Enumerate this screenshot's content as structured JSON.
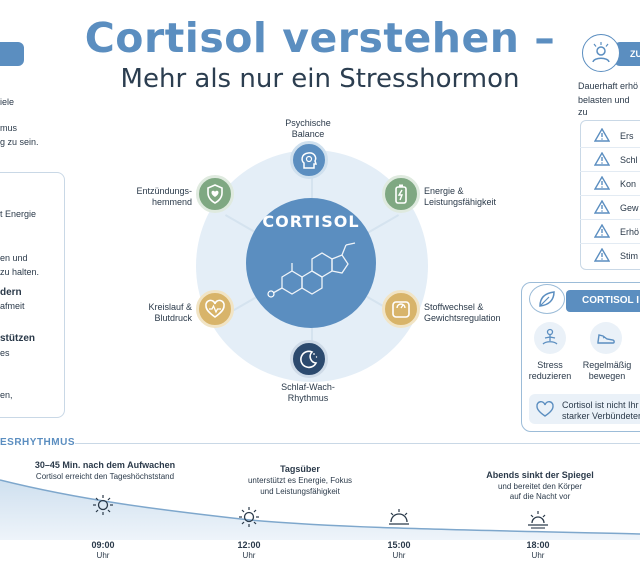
{
  "header": {
    "title": "Cortisol verstehen –",
    "subtitle": "Mehr als nur ein Stresshormon"
  },
  "left_panel": {
    "intro_lines": [
      "iele",
      "mus",
      "g zu sein."
    ],
    "items": [
      {
        "bold": "",
        "text": "t Energie"
      },
      {
        "bold": "",
        "text": "en und"
      },
      {
        "bold": "",
        "text": "zu halten."
      },
      {
        "bold": "dern",
        "text": "afmeit"
      },
      {
        "bold": "stützen",
        "text": "es"
      },
      {
        "bold": "",
        "text": "en,"
      }
    ]
  },
  "center": {
    "core_label": "CORTISOL",
    "nodes": [
      {
        "id": "psyche",
        "label_lines": [
          "Psychische",
          "Balance"
        ],
        "icon": "head-icon"
      },
      {
        "id": "energie",
        "label_lines": [
          "Energie &",
          "Leistungsfähigkeit"
        ],
        "icon": "battery-icon"
      },
      {
        "id": "stoffwechsel",
        "label_lines": [
          "Stoffwechsel &",
          "Gewichtsregulation"
        ],
        "icon": "scale-icon"
      },
      {
        "id": "schlaf",
        "label_lines": [
          "Schlaf-Wach-",
          "Rhythmus"
        ],
        "icon": "moon-icon"
      },
      {
        "id": "kreislauf",
        "label_lines": [
          "Kreislauf &",
          "Blutdruck"
        ],
        "icon": "heart-pulse-icon"
      },
      {
        "id": "entzuendung",
        "label_lines": [
          "Entzündungs-",
          "hemmend"
        ],
        "icon": "shield-heart-icon"
      }
    ]
  },
  "right_panel": {
    "header_label": "ZU",
    "intro_lines": [
      "Dauerhaft erhö",
      "belasten und zu"
    ],
    "warnings": [
      "Ers",
      "Schl",
      "Kon",
      "Gew",
      "Erhö",
      "Stim"
    ],
    "balance_title": "CORTISOL I",
    "habits": [
      {
        "label_lines": [
          "Stress",
          "reduzieren"
        ],
        "icon": "meditation-icon"
      },
      {
        "label_lines": [
          "Regelmäßig",
          "bewegen"
        ],
        "icon": "shoe-icon"
      }
    ],
    "note_lines": [
      "Cortisol ist nicht Ihr",
      "starker Verbündeter"
    ]
  },
  "timeline": {
    "title": "ESRHYTHMUS",
    "events": [
      {
        "title": "30–45 Min. nach dem Aufwachen",
        "text_lines": [
          "Cortisol erreicht den Tageshöchststand"
        ]
      },
      {
        "title": "Tagsüber",
        "text_lines": [
          "unterstützt es Energie, Fokus",
          "und Leistungsfähigkeit"
        ]
      },
      {
        "title": "Abends sinkt der Spiegel",
        "text_lines": [
          "und bereitet den Körper",
          "auf die Nacht vor"
        ]
      }
    ],
    "times": [
      {
        "time": "09:00",
        "unit": "Uhr",
        "icon": "sun-icon"
      },
      {
        "time": "12:00",
        "unit": "Uhr",
        "icon": "sun-icon"
      },
      {
        "time": "15:00",
        "unit": "Uhr",
        "icon": "sun-cloud-icon"
      },
      {
        "time": "18:00",
        "unit": "Uhr",
        "icon": "sunset-icon"
      }
    ]
  },
  "colors": {
    "accent": "#5b8ec0",
    "ring": "#e4eef7",
    "green": "#7fa882",
    "tan": "#d8b46a",
    "navy": "#2c3e50"
  }
}
